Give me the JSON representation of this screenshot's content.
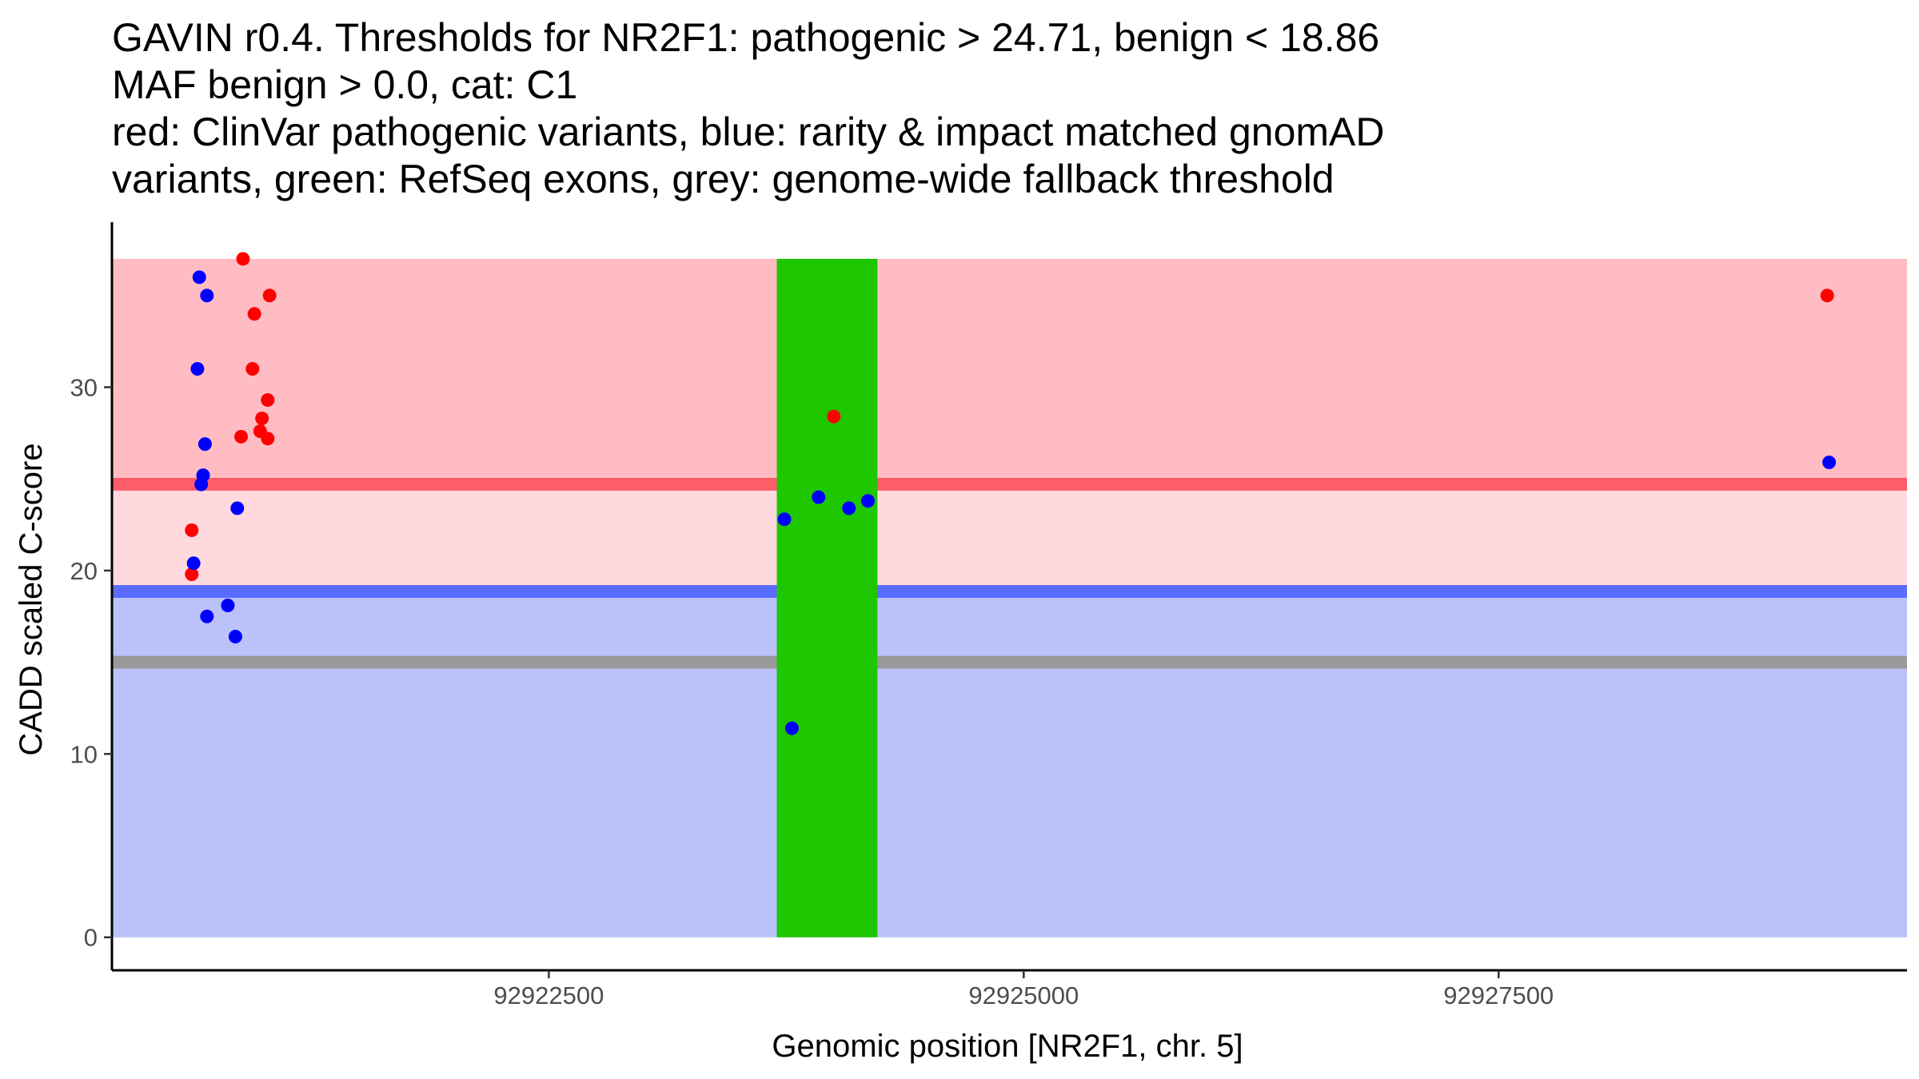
{
  "title_lines": [
    "GAVIN r0.4. Thresholds for NR2F1: pathogenic > 24.71, benign < 18.86",
    "MAF benign > 0.0, cat: C1",
    "red: ClinVar pathogenic variants, blue: rarity & impact matched gnomAD",
    "variants, green: RefSeq exons, grey: genome-wide fallback threshold"
  ],
  "chart_data": {
    "type": "scatter",
    "xlabel": "Genomic position [NR2F1, chr. 5]",
    "ylabel": "CADD scaled C-score",
    "xlim": [
      92920200,
      92929650
    ],
    "ylim": [
      -1.8,
      39
    ],
    "x_ticks": [
      92922500,
      92925000,
      92927500
    ],
    "y_ticks": [
      0,
      10,
      20,
      30
    ],
    "grid": false,
    "thresholds": {
      "pathogenic": 24.71,
      "benign": 18.86,
      "fallback": 15
    },
    "regions": [
      {
        "name": "pathogenic-zone",
        "y0": 24.71,
        "y1": 37,
        "color": "#ffbdc3"
      },
      {
        "name": "uncertain-zone",
        "y0": 18.86,
        "y1": 24.71,
        "color": "#ffd9de"
      },
      {
        "name": "benign-zone",
        "y0": 0,
        "y1": 18.86,
        "color": "#bbc1fb"
      }
    ],
    "exons": [
      {
        "x0": 92923700,
        "x1": 92924230,
        "y0": 0,
        "y1": 37,
        "color": "#1ec700"
      }
    ],
    "series": [
      {
        "name": "ClinVar pathogenic variants",
        "color": "#ff0000",
        "points": [
          [
            92920620,
            22.2
          ],
          [
            92920620,
            19.8
          ],
          [
            92920890,
            37.0
          ],
          [
            92920950,
            34.0
          ],
          [
            92921030,
            35.0
          ],
          [
            92920940,
            31.0
          ],
          [
            92921020,
            29.3
          ],
          [
            92920990,
            28.3
          ],
          [
            92920980,
            27.6
          ],
          [
            92920880,
            27.3
          ],
          [
            92921020,
            27.2
          ],
          [
            92924000,
            28.4
          ],
          [
            92929230,
            35.0
          ]
        ]
      },
      {
        "name": "rarity & impact matched gnomAD variants",
        "color": "#0000ff",
        "points": [
          [
            92920660,
            36.0
          ],
          [
            92920700,
            35.0
          ],
          [
            92920650,
            31.0
          ],
          [
            92920690,
            26.9
          ],
          [
            92920680,
            25.2
          ],
          [
            92920670,
            24.7
          ],
          [
            92920630,
            20.4
          ],
          [
            92920700,
            17.5
          ],
          [
            92920810,
            18.1
          ],
          [
            92920860,
            23.4
          ],
          [
            92920850,
            16.4
          ],
          [
            92923740,
            22.8
          ],
          [
            92923780,
            11.4
          ],
          [
            92923920,
            24.0
          ],
          [
            92924080,
            23.4
          ],
          [
            92924180,
            23.8
          ],
          [
            92929240,
            25.9
          ]
        ]
      }
    ]
  },
  "colors": {
    "pathogenic_line": "#ff5c6a",
    "benign_line": "#5a6cff",
    "fallback_line": "#999999",
    "axis": "#000000",
    "tick_text": "#4d4d4d"
  }
}
